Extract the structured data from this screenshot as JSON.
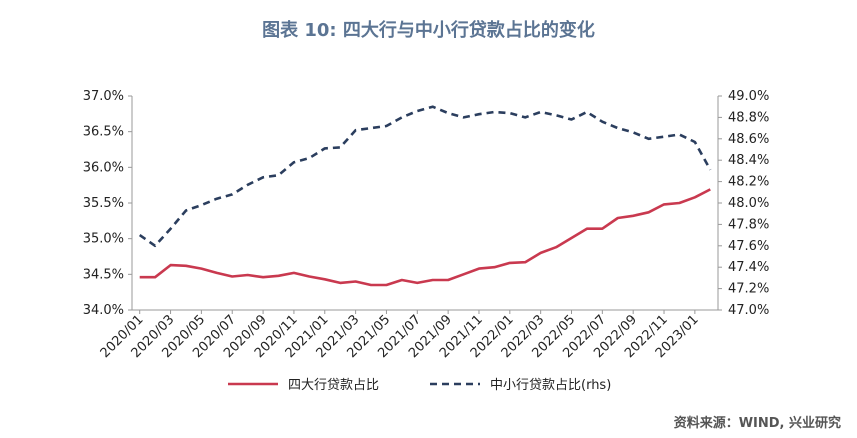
{
  "title": "图表 10: 四大行与中小行贷款占比的变化",
  "source": "资料来源：WIND, 兴业研究",
  "colors": {
    "red": "#c9394f",
    "navy": "#2b3e5e",
    "axis": "#999999",
    "title": "#5b7493"
  },
  "chart_data": {
    "type": "line",
    "x_tick_labels": [
      "2020/01",
      "2020/03",
      "2020/05",
      "2020/07",
      "2020/09",
      "2020/11",
      "2021/01",
      "2021/03",
      "2021/05",
      "2021/07",
      "2021/09",
      "2021/11",
      "2022/01",
      "2022/03",
      "2022/05",
      "2022/07",
      "2022/09",
      "2022/11",
      "2023/01"
    ],
    "y_left": {
      "ticks": [
        "34.0%",
        "34.5%",
        "35.0%",
        "35.5%",
        "36.0%",
        "36.5%",
        "37.0%"
      ],
      "ylim": [
        34.0,
        37.0
      ]
    },
    "y_right": {
      "ticks": [
        "47.0%",
        "47.2%",
        "47.4%",
        "47.6%",
        "47.8%",
        "48.0%",
        "48.2%",
        "48.4%",
        "48.6%",
        "48.8%",
        "49.0%"
      ],
      "ylim": [
        47.0,
        49.0
      ]
    },
    "grid": false,
    "legend_position": "bottom",
    "series": [
      {
        "name": "四大行贷款占比",
        "axis": "left",
        "style": "solid",
        "color": "#c9394f",
        "values": [
          34.46,
          34.46,
          34.63,
          34.62,
          34.58,
          34.52,
          34.47,
          34.49,
          34.46,
          34.48,
          34.52,
          34.47,
          34.43,
          34.38,
          34.4,
          34.35,
          34.35,
          34.42,
          34.38,
          34.42,
          34.42,
          34.5,
          34.58,
          34.6,
          34.66,
          34.67,
          34.8,
          34.88,
          35.01,
          35.14,
          35.14,
          35.29,
          35.32,
          35.37,
          35.48,
          35.5,
          35.58,
          35.69
        ]
      },
      {
        "name": "中小行贷款占比(rhs)",
        "axis": "right",
        "style": "dashed",
        "color": "#2b3e5e",
        "values": [
          47.7,
          47.6,
          47.76,
          47.93,
          47.98,
          48.04,
          48.08,
          48.17,
          48.24,
          48.26,
          48.38,
          48.42,
          48.51,
          48.52,
          48.68,
          48.7,
          48.72,
          48.8,
          48.86,
          48.9,
          48.84,
          48.8,
          48.83,
          48.85,
          48.84,
          48.8,
          48.85,
          48.82,
          48.78,
          48.85,
          48.76,
          48.7,
          48.66,
          48.6,
          48.62,
          48.64,
          48.57,
          48.31
        ]
      }
    ]
  }
}
